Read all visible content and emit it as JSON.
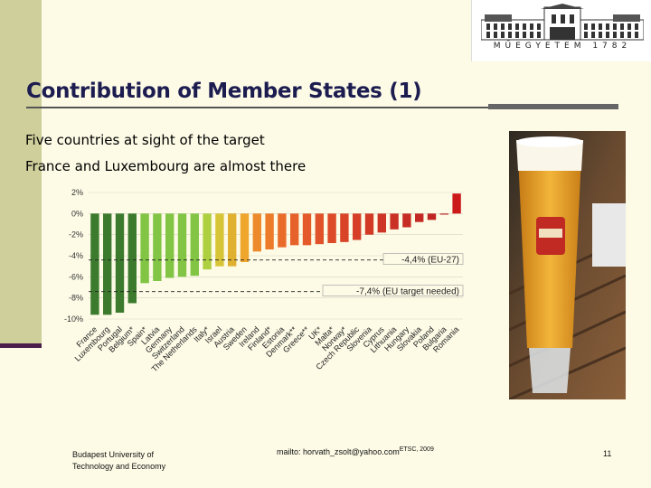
{
  "slide": {
    "title": "Contribution of Member States (1)",
    "bullets": [
      "Five countries at sight of the target",
      "France and Luxembourg are almost there"
    ],
    "logo_text": "MŰEGYETEM 1782",
    "footer": {
      "institution_line1": "Budapest University of",
      "institution_line2": "Technology and Economy",
      "email": "mailto: horvath_zsolt@yahoo.com",
      "source": "ETSC, 2009",
      "page_number": "11"
    }
  },
  "chart_data": {
    "type": "bar",
    "ylim": [
      -10,
      2
    ],
    "yticks": [
      2,
      0,
      -2,
      -4,
      -6,
      -8,
      -10
    ],
    "ytick_labels": [
      "2%",
      "0%",
      "-2%",
      "-4%",
      "-6%",
      "-8%",
      "-10%"
    ],
    "categories": [
      "France",
      "Luxembourg",
      "Portugal",
      "Belgium*",
      "Spain*",
      "Latvia",
      "Germany",
      "Switzerland",
      "The Netherlands",
      "Italy*",
      "Israel",
      "Austria",
      "Sweden",
      "Ireland",
      "Finland*",
      "Estonia",
      "Denmark**",
      "Greece**",
      "UK*",
      "Malta*",
      "Norway*",
      "Czech Republic",
      "Slovenia",
      "Cyprus",
      "Lithuania",
      "Hungary",
      "Slovakia",
      "Poland",
      "Bulgaria",
      "Romania"
    ],
    "values": [
      -9.6,
      -9.6,
      -9.4,
      -8.5,
      -6.6,
      -6.4,
      -6.1,
      -6.0,
      -5.9,
      -5.3,
      -5.0,
      -5.0,
      -4.6,
      -3.6,
      -3.4,
      -3.2,
      -3.0,
      -3.0,
      -2.9,
      -2.8,
      -2.7,
      -2.5,
      -2.0,
      -1.8,
      -1.5,
      -1.3,
      -0.8,
      -0.6,
      -0.1,
      1.9
    ],
    "bar_colors": [
      "#3c7b2e",
      "#3c7b2e",
      "#3c7b2e",
      "#3c7b2e",
      "#82c545",
      "#82c545",
      "#82c545",
      "#82c545",
      "#82c545",
      "#aed040",
      "#d8c537",
      "#e0b030",
      "#efa62c",
      "#ec8a2c",
      "#ec7c2a",
      "#ea6c2a",
      "#e6622a",
      "#e45a2a",
      "#e0522a",
      "#dd4a29",
      "#d94428",
      "#d63e27",
      "#d23a26",
      "#cf3526",
      "#cb3025",
      "#c72c24",
      "#c42824",
      "#c02423",
      "#bd2022",
      "#cc1a1a"
    ],
    "reference_lines": [
      {
        "label": "-4,4% (EU-27)",
        "value": -4.4
      },
      {
        "label": "-7,4% (EU target needed)",
        "value": -7.4
      }
    ]
  }
}
